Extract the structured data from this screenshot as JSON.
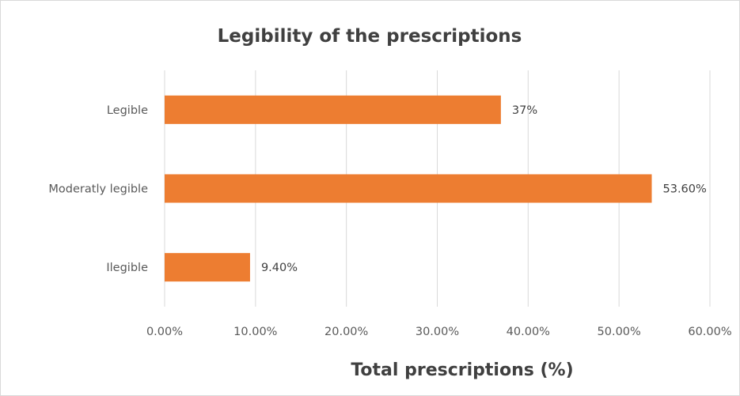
{
  "chart_data": {
    "type": "bar",
    "orientation": "horizontal",
    "title": "Legibility of the prescriptions",
    "xlabel": "Total prescriptions (%)",
    "ylabel": "",
    "categories": [
      "Legible",
      "Moderatly legible",
      "Ilegible"
    ],
    "values": [
      37,
      53.6,
      9.4
    ],
    "data_labels": [
      "37%",
      "53.60%",
      "9.40%"
    ],
    "xlim": [
      0,
      60
    ],
    "x_ticks": [
      0,
      10,
      20,
      30,
      40,
      50,
      60
    ],
    "x_tick_labels": [
      "0.00%",
      "10.00%",
      "20.00%",
      "30.00%",
      "40.00%",
      "50.00%",
      "60.00%"
    ],
    "grid": "vertical",
    "legend": "none",
    "bar_color": "#ED7D31"
  }
}
